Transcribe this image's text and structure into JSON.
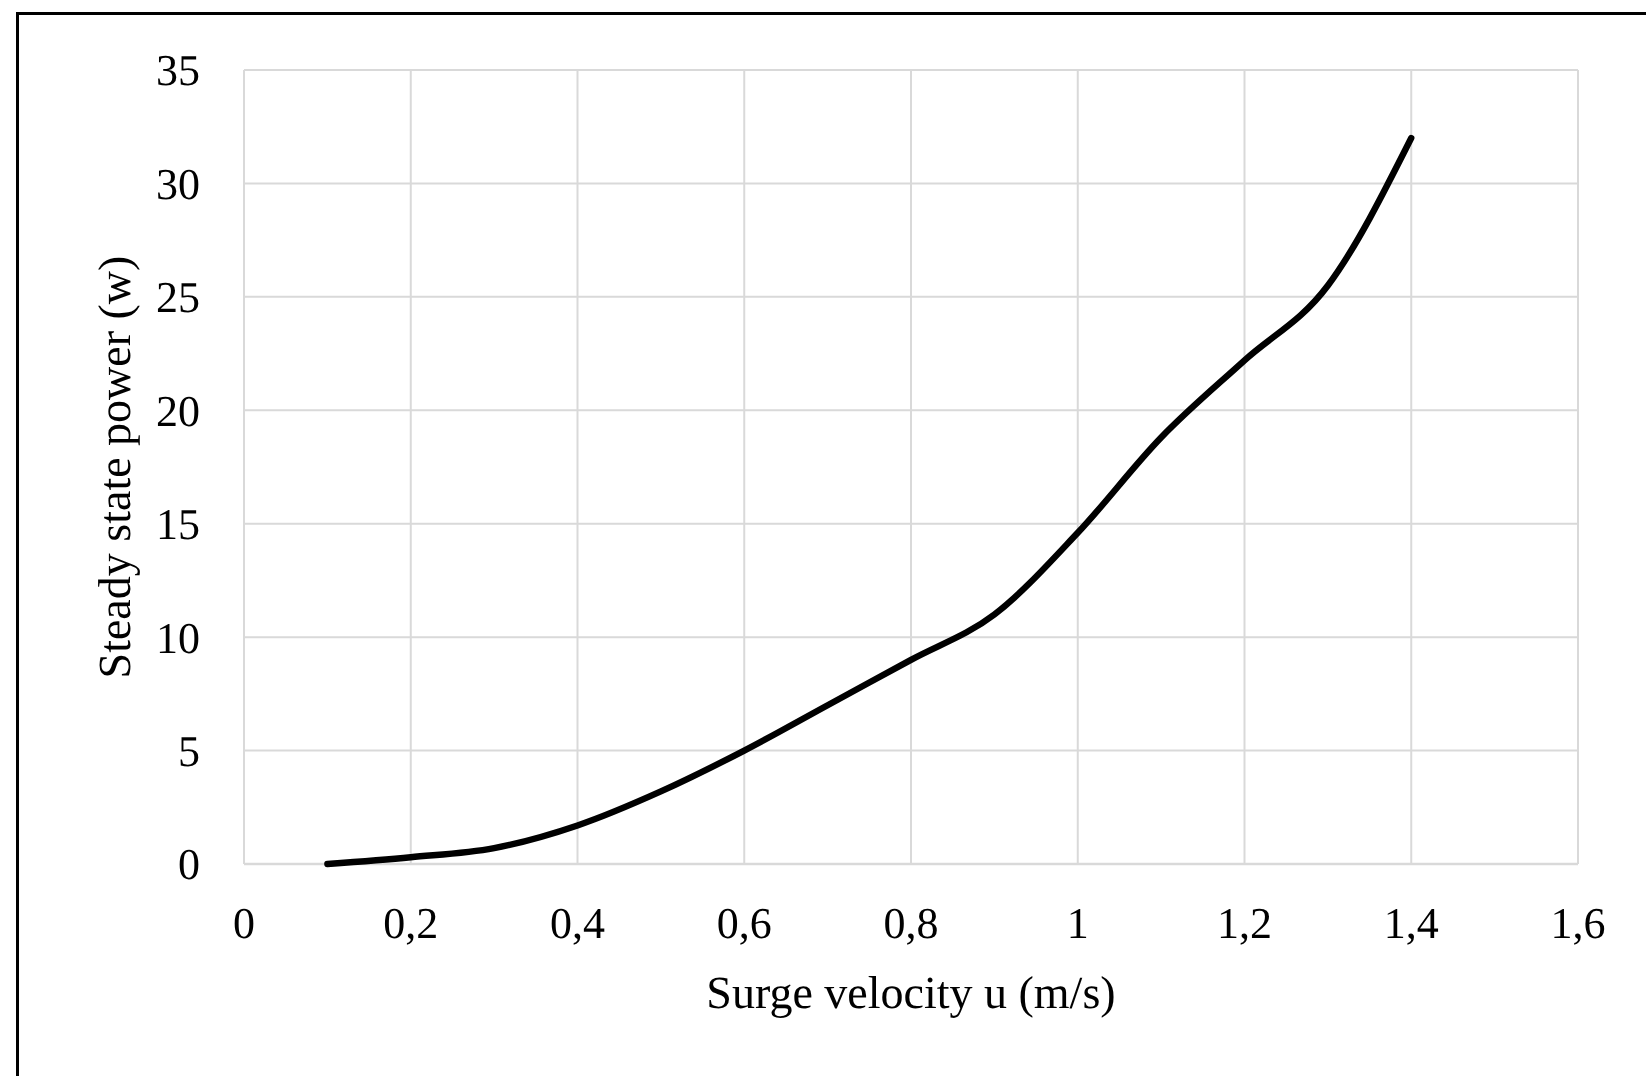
{
  "chart_data": {
    "type": "line",
    "xlabel": "Surge velocity u (m/s)",
    "ylabel": "Steady state power (w)",
    "x": [
      0.1,
      0.2,
      0.3,
      0.4,
      0.5,
      0.6,
      0.7,
      0.8,
      0.9,
      1.0,
      1.1,
      1.2,
      1.3,
      1.4
    ],
    "series": [
      {
        "color": "#000000",
        "values": [
          0,
          0.3,
          0.7,
          1.7,
          3.2,
          5,
          7,
          9,
          11,
          14.6,
          18.8,
          22.2,
          25.5,
          32
        ]
      }
    ],
    "xlim": [
      0,
      1.6
    ],
    "xticks": [
      0,
      {
        "value": 0.2,
        "label": "0,2"
      },
      {
        "value": 0.4,
        "label": "0,4"
      },
      {
        "value": 0.6,
        "label": "0,6"
      },
      {
        "value": 0.8,
        "label": "0,8"
      },
      1,
      {
        "value": 1.2,
        "label": "1,2"
      },
      {
        "value": 1.4,
        "label": "1,4"
      },
      {
        "value": 1.6,
        "label": "1,6"
      }
    ],
    "ylim": [
      0,
      35
    ],
    "yticks": [
      0,
      5,
      10,
      15,
      20,
      25,
      30,
      35
    ],
    "grid": true,
    "marker": "none",
    "line_style": "solid"
  }
}
